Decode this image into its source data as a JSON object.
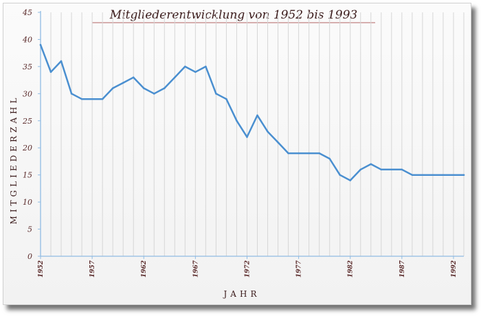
{
  "chart_data": {
    "type": "line",
    "title": "Mitgliederentwicklung von 1952 bis 1993",
    "xlabel": "JAHR",
    "ylabel": "MITGLIEDERZAHL",
    "ylim": [
      0,
      45
    ],
    "yticks": [
      0,
      5,
      10,
      15,
      20,
      25,
      30,
      35,
      40,
      45
    ],
    "xticks": [
      1952,
      1957,
      1962,
      1967,
      1972,
      1977,
      1982,
      1987,
      1992
    ],
    "grid": "vertical",
    "legend": "none",
    "line_color": "#4a8fd0",
    "x": [
      1952,
      1953,
      1954,
      1955,
      1956,
      1957,
      1958,
      1959,
      1960,
      1961,
      1962,
      1963,
      1964,
      1965,
      1966,
      1967,
      1968,
      1969,
      1970,
      1971,
      1972,
      1973,
      1974,
      1975,
      1976,
      1977,
      1978,
      1979,
      1980,
      1981,
      1982,
      1983,
      1984,
      1985,
      1986,
      1987,
      1988,
      1989,
      1990,
      1991,
      1992,
      1993
    ],
    "series": [
      {
        "values": [
          39,
          34,
          36,
          30,
          29,
          29,
          29,
          31,
          32,
          33,
          31,
          30,
          31,
          33,
          35,
          34,
          35,
          30,
          29,
          25,
          22,
          26,
          23,
          21,
          19,
          19,
          19,
          19,
          18,
          15,
          14,
          16,
          17,
          16,
          16,
          16,
          15,
          15,
          15,
          15,
          15,
          15
        ]
      }
    ]
  }
}
